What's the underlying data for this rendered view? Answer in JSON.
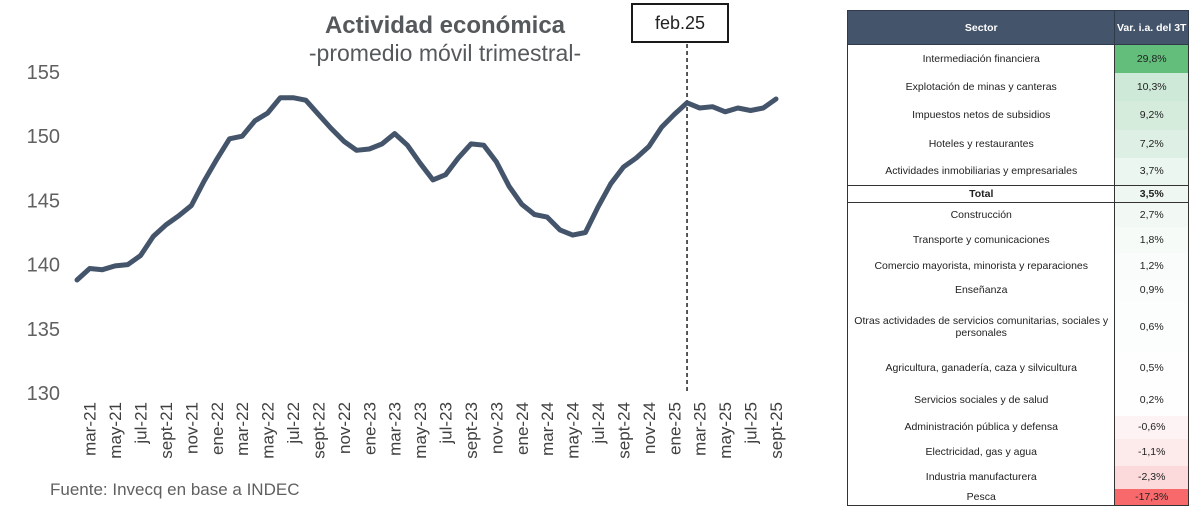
{
  "chart_data": [
    {
      "type": "line",
      "title": "Actividad económica",
      "subtitle": "-promedio móvil trimestral-",
      "source": "Fuente: Invecq en base a INDEC",
      "annotation": "feb.25",
      "annotation_x": "feb-25",
      "ylim": [
        130,
        155
      ],
      "y_ticks": [
        "130",
        "135",
        "140",
        "145",
        "150",
        "155"
      ],
      "x_tick_labels": [
        "mar-21",
        "may-21",
        "jul-21",
        "sept-21",
        "nov-21",
        "ene-22",
        "mar-22",
        "may-22",
        "jul-22",
        "sept-22",
        "nov-22",
        "ene-23",
        "mar-23",
        "may-23",
        "jul-23",
        "sept-23",
        "nov-23",
        "ene-24",
        "mar-24",
        "may-24",
        "jul-24",
        "sept-24",
        "nov-24",
        "ene-25",
        "mar-25",
        "may-25",
        "jul-25",
        "sept-25"
      ],
      "x": [
        "feb-21",
        "mar-21",
        "abr-21",
        "may-21",
        "jun-21",
        "jul-21",
        "ago-21",
        "sept-21",
        "oct-21",
        "nov-21",
        "dic-21",
        "ene-22",
        "feb-22",
        "mar-22",
        "abr-22",
        "may-22",
        "jun-22",
        "jul-22",
        "ago-22",
        "sept-22",
        "oct-22",
        "nov-22",
        "dic-22",
        "ene-23",
        "feb-23",
        "mar-23",
        "abr-23",
        "may-23",
        "jun-23",
        "jul-23",
        "ago-23",
        "sept-23",
        "oct-23",
        "nov-23",
        "dic-23",
        "ene-24",
        "feb-24",
        "mar-24",
        "abr-24",
        "may-24",
        "jun-24",
        "jul-24",
        "ago-24",
        "sept-24",
        "oct-24",
        "nov-24",
        "dic-24",
        "ene-25",
        "feb-25",
        "mar-25",
        "abr-25",
        "may-25",
        "jun-25",
        "jul-25",
        "ago-25",
        "sept-25"
      ],
      "series": [
        {
          "color": "#44546a",
          "values": [
            138.8,
            139.7,
            139.6,
            139.9,
            140.0,
            140.7,
            142.2,
            143.1,
            143.8,
            144.6,
            146.5,
            148.2,
            149.8,
            150.0,
            151.2,
            151.8,
            153.0,
            153.0,
            152.8,
            151.7,
            150.6,
            149.6,
            148.9,
            149.0,
            149.4,
            150.2,
            149.3,
            147.9,
            146.6,
            147.0,
            148.3,
            149.4,
            149.3,
            148.0,
            146.1,
            144.7,
            143.9,
            143.7,
            142.7,
            142.3,
            142.5,
            144.5,
            146.3,
            147.6,
            148.3,
            149.2,
            150.7,
            151.7,
            152.6,
            152.2,
            152.3,
            151.9,
            152.2,
            152.0,
            152.2,
            152.9
          ]
        }
      ]
    },
    {
      "type": "table",
      "columns": [
        "Sector",
        "Var. i.a. del 3T"
      ],
      "rows": [
        {
          "sector": "Intermediación financiera",
          "value": "29,8%",
          "color": "#63be7b",
          "h": 28
        },
        {
          "sector": "Explotación de minas y canteras",
          "value": "10,3%",
          "color": "#cfe9d8",
          "h": 28
        },
        {
          "sector": "Impuestos netos de subsidios",
          "value": "9,2%",
          "color": "#d5ecdd",
          "h": 29
        },
        {
          "sector": "Hoteles y restaurantes",
          "value": "7,2%",
          "color": "#def0e5",
          "h": 28
        },
        {
          "sector": "Actividades inmobiliarias y empresariales",
          "value": "3,7%",
          "color": "#ecf6f0",
          "h": 28
        },
        {
          "sector": "Total",
          "value": "3,5%",
          "color": "#eef7f2",
          "h": 17,
          "total": true
        },
        {
          "sector": "Construcción",
          "value": "2,7%",
          "color": "#f2f9f5",
          "h": 24
        },
        {
          "sector": "Transporte y comunicaciones",
          "value": "1,8%",
          "color": "#f6fbf8",
          "h": 26
        },
        {
          "sector": "Comercio mayorista, minorista y reparaciones",
          "value": "1,2%",
          "color": "#f9fcfa",
          "h": 26
        },
        {
          "sector": "Enseñanza",
          "value": "0,9%",
          "color": "#fbfdfc",
          "h": 23
        },
        {
          "sector": "Otras actividades de servicios comunitarias, sociales y personales",
          "value": "0,6%",
          "color": "#fcfefd",
          "h": 50
        },
        {
          "sector": "Agricultura, ganadería, caza y silvicultura",
          "value": "0,5%",
          "color": "#fdfefd",
          "h": 33
        },
        {
          "sector": "Servicios sociales y de salud",
          "value": "0,2%",
          "color": "#fefefe",
          "h": 31
        },
        {
          "sector": "Administración pública y defensa",
          "value": "-0,6%",
          "color": "#fdf3f4",
          "h": 23
        },
        {
          "sector": "Electricidad, gas y agua",
          "value": "-1,1%",
          "color": "#fdebec",
          "h": 27
        },
        {
          "sector": "Industria manufacturera",
          "value": "-2,3%",
          "color": "#fcdadc",
          "h": 23
        },
        {
          "sector": "Pesca",
          "value": "-17,3%",
          "color": "#f8696b",
          "h": 17
        }
      ]
    }
  ]
}
